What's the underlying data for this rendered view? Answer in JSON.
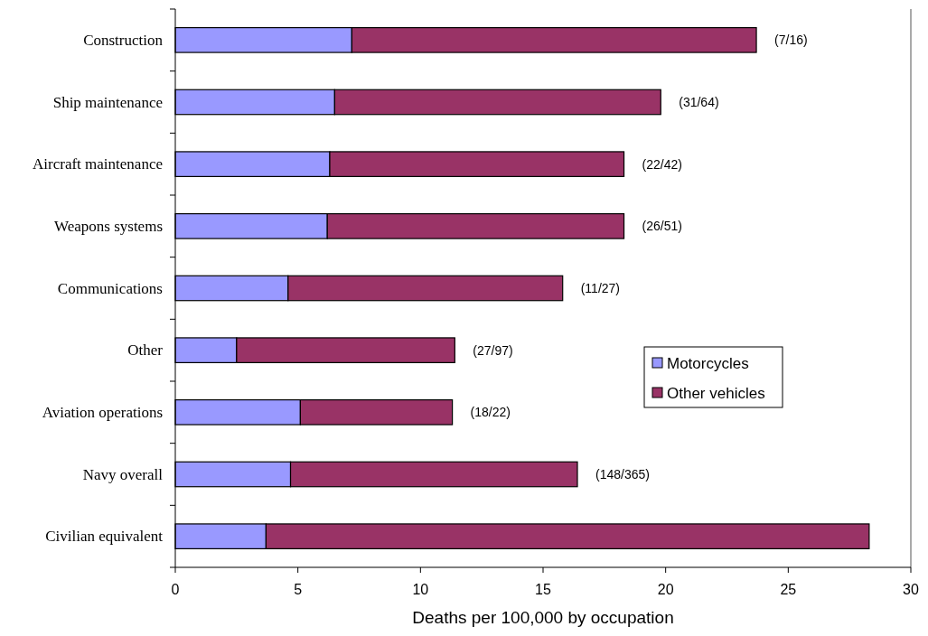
{
  "chart_data": {
    "type": "bar",
    "orientation": "horizontal",
    "stacked": true,
    "xlabel": "Deaths per 100,000 by occupation",
    "categories": [
      "Construction",
      "Ship maintenance",
      "Aircraft maintenance",
      "Weapons systems",
      "Communications",
      "Other",
      "Aviation operations",
      "Navy overall",
      "Civilian equivalent"
    ],
    "series": [
      {
        "name": "Motorcycles",
        "color": "#9999ff",
        "values": [
          7.2,
          6.5,
          6.3,
          6.2,
          4.6,
          2.5,
          5.1,
          4.7,
          3.7
        ]
      },
      {
        "name": "Other vehicles",
        "color": "#993366",
        "values": [
          16.5,
          13.3,
          12.0,
          12.1,
          11.2,
          8.9,
          6.2,
          11.7,
          24.6
        ]
      }
    ],
    "xlim": [
      0,
      30
    ],
    "xticks": [
      0,
      5,
      10,
      15,
      20,
      25,
      30
    ],
    "grid": false,
    "legend": "right",
    "annotations": [
      {
        "text": "(7/16)",
        "x": 23.7,
        "y": "Construction"
      },
      {
        "text": "(31/64)",
        "x": 19.8,
        "y": "Ship maintenance"
      },
      {
        "text": "(22/42)",
        "x": 18.3,
        "y": "Aircraft maintenance"
      },
      {
        "text": "(26/51)",
        "x": 18.3,
        "y": "Weapons systems"
      },
      {
        "text": "(11/27)",
        "x": 15.8,
        "y": "Communications"
      },
      {
        "text": "(27/97)",
        "x": 11.4,
        "y": "Other"
      },
      {
        "text": "(18/22)",
        "x": 11.3,
        "y": "Aviation operations"
      },
      {
        "text": "(148/365)",
        "x": 16.4,
        "y": "Navy overall"
      }
    ]
  }
}
